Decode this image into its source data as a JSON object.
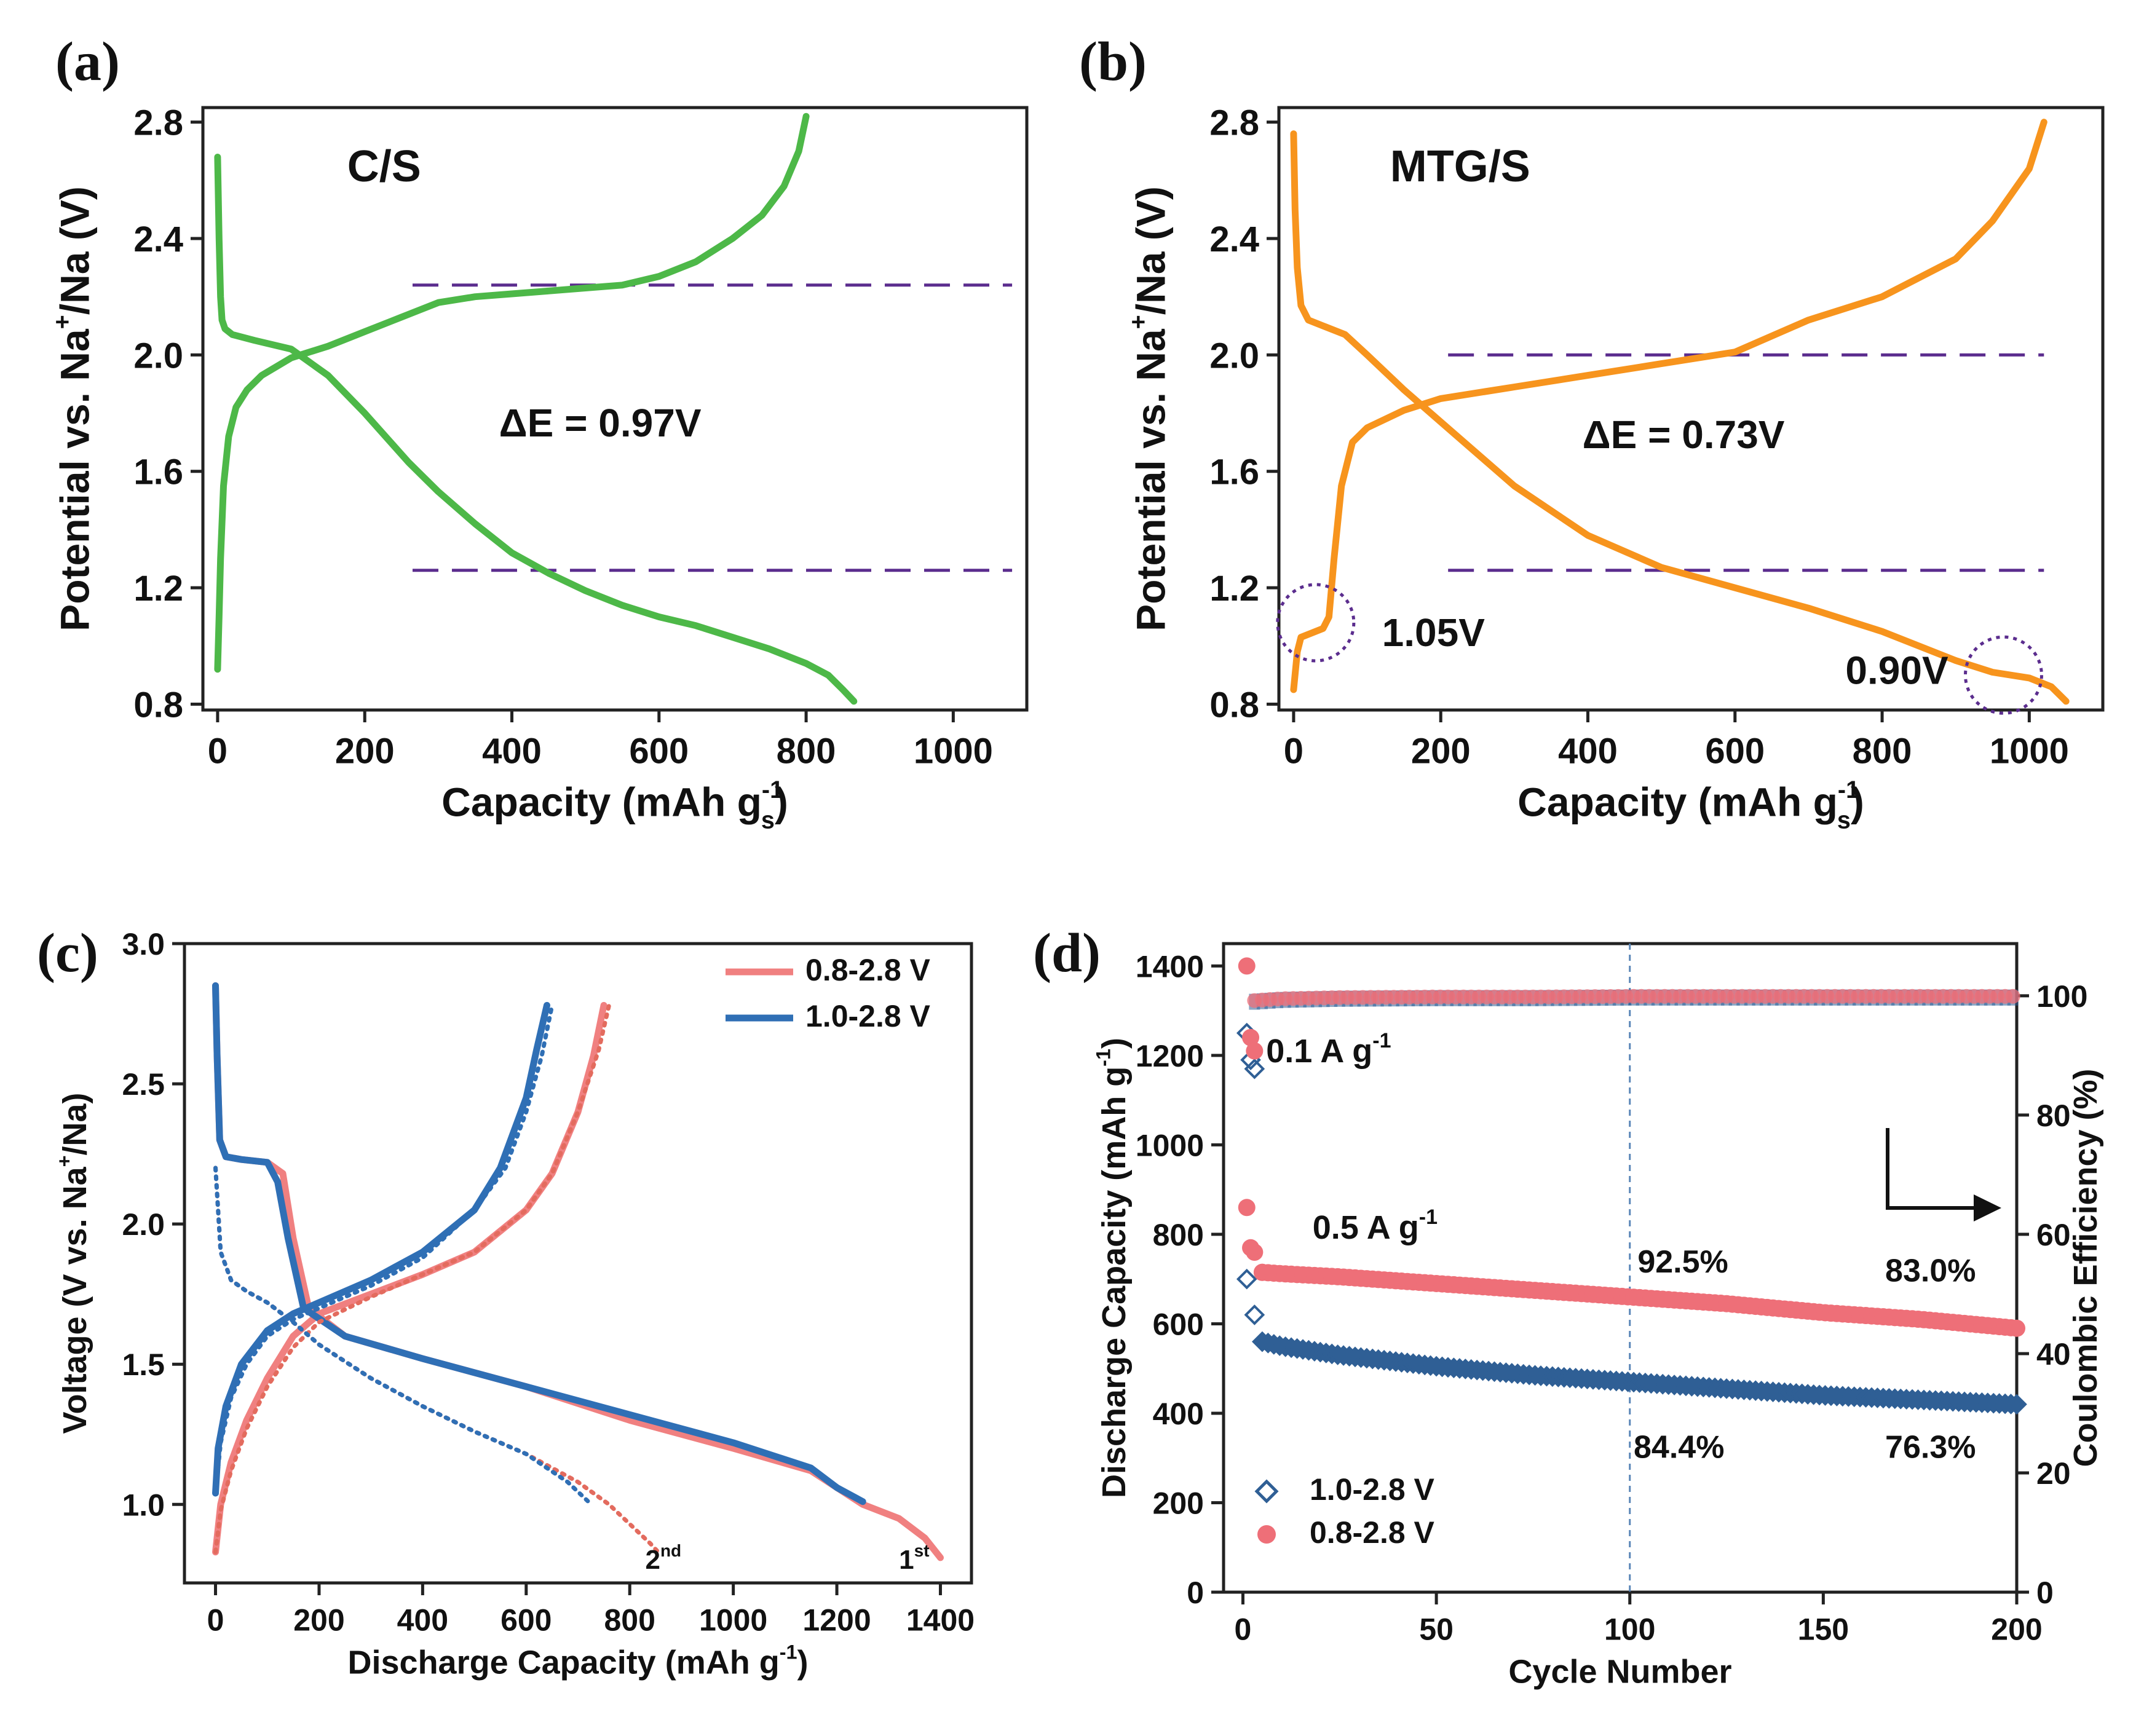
{
  "chart_data": [
    {
      "id": "a",
      "type": "line",
      "panel_label": "(a)",
      "title": "C/S",
      "xlabel": "Capacity (mAh g",
      "xlabel_sub": "s",
      "xlabel_sup": "-1",
      "ylabel": "Potential vs. Na",
      "ylabel_sup": "+",
      "ylabel_tail": "/Na (V)",
      "xlim": [
        -20,
        1100
      ],
      "ylim": [
        0.78,
        2.85
      ],
      "xticks": [
        0,
        200,
        400,
        600,
        800,
        1000
      ],
      "yticks": [
        0.8,
        1.2,
        1.6,
        2.0,
        2.4,
        2.8
      ],
      "ytick_labels": [
        "0.8",
        "1.2",
        "1.6",
        "2.0",
        "2.4",
        "2.8"
      ],
      "annotation": "ΔE = 0.97V",
      "annotation_at": [
        520,
        1.72
      ],
      "hlines": [
        {
          "y": 2.24,
          "x0": 265,
          "x1": 1080
        },
        {
          "y": 1.26,
          "x0": 265,
          "x1": 1080
        }
      ],
      "series": [
        {
          "name": "discharge",
          "color": "#4db848",
          "x": [
            0,
            2,
            4,
            6,
            10,
            20,
            50,
            100,
            150,
            200,
            260,
            300,
            350,
            400,
            450,
            500,
            550,
            600,
            650,
            700,
            750,
            800,
            830,
            850,
            865
          ],
          "y": [
            2.68,
            2.4,
            2.2,
            2.12,
            2.09,
            2.07,
            2.05,
            2.02,
            1.93,
            1.8,
            1.63,
            1.53,
            1.42,
            1.32,
            1.25,
            1.19,
            1.14,
            1.1,
            1.07,
            1.03,
            0.99,
            0.94,
            0.9,
            0.85,
            0.81
          ]
        },
        {
          "name": "charge",
          "color": "#4db848",
          "x": [
            0,
            2,
            4,
            8,
            15,
            25,
            40,
            60,
            100,
            150,
            200,
            250,
            300,
            350,
            400,
            450,
            500,
            550,
            600,
            650,
            700,
            740,
            770,
            790,
            800
          ],
          "y": [
            0.92,
            1.1,
            1.3,
            1.55,
            1.72,
            1.82,
            1.88,
            1.93,
            1.99,
            2.03,
            2.08,
            2.13,
            2.18,
            2.2,
            2.21,
            2.22,
            2.23,
            2.24,
            2.27,
            2.32,
            2.4,
            2.48,
            2.58,
            2.7,
            2.82
          ]
        }
      ]
    },
    {
      "id": "b",
      "type": "line",
      "panel_label": "(b)",
      "title": "MTG/S",
      "xlabel": "Capacity (mAh g",
      "xlabel_sub": "s",
      "xlabel_sup": "-1",
      "ylabel": "Potential vs. Na",
      "ylabel_sup": "+",
      "ylabel_tail": "/Na (V)",
      "xlim": [
        -20,
        1100
      ],
      "ylim": [
        0.78,
        2.85
      ],
      "xticks": [
        0,
        200,
        400,
        600,
        800,
        1000
      ],
      "yticks": [
        0.8,
        1.2,
        1.6,
        2.0,
        2.4,
        2.8
      ],
      "ytick_labels": [
        "0.8",
        "1.2",
        "1.6",
        "2.0",
        "2.4",
        "2.8"
      ],
      "annotation": "ΔE = 0.73V",
      "annotation_at": [
        530,
        1.68
      ],
      "annotation2": "1.05V",
      "annotation2_at": [
        190,
        1.0
      ],
      "annotation3": "0.90V",
      "annotation3_at": [
        820,
        0.87
      ],
      "circles": [
        {
          "x": 30,
          "y": 1.08
        },
        {
          "x": 965,
          "y": 0.9
        }
      ],
      "hlines": [
        {
          "y": 2.0,
          "x0": 210,
          "x1": 1020
        },
        {
          "y": 1.26,
          "x0": 210,
          "x1": 1020
        }
      ],
      "series": [
        {
          "name": "discharge",
          "color": "#f7941d",
          "x": [
            0,
            2,
            5,
            10,
            20,
            40,
            70,
            100,
            150,
            200,
            300,
            400,
            500,
            600,
            700,
            800,
            900,
            950,
            1000,
            1030,
            1050
          ],
          "y": [
            2.76,
            2.5,
            2.3,
            2.17,
            2.12,
            2.1,
            2.07,
            2.0,
            1.88,
            1.77,
            1.55,
            1.38,
            1.27,
            1.2,
            1.13,
            1.05,
            0.95,
            0.91,
            0.89,
            0.86,
            0.81
          ]
        },
        {
          "name": "charge",
          "color": "#f7941d",
          "x": [
            0,
            5,
            10,
            20,
            40,
            48,
            55,
            65,
            80,
            100,
            150,
            200,
            300,
            400,
            500,
            600,
            700,
            800,
            900,
            950,
            1000,
            1020
          ],
          "y": [
            0.85,
            0.98,
            1.03,
            1.04,
            1.06,
            1.1,
            1.3,
            1.55,
            1.7,
            1.75,
            1.81,
            1.85,
            1.89,
            1.93,
            1.97,
            2.01,
            2.12,
            2.2,
            2.33,
            2.46,
            2.64,
            2.8
          ]
        }
      ]
    },
    {
      "id": "c",
      "type": "line",
      "panel_label": "(c)",
      "xlabel": "Discharge Capacity (mAh g",
      "xlabel_sup": "-1",
      "xlabel_tail": ")",
      "ylabel": "Voltage (V vs. Na",
      "ylabel_sup": "+",
      "ylabel_tail": "/Na)",
      "xlim": [
        -60,
        1460
      ],
      "ylim": [
        0.72,
        3.0
      ],
      "xticks": [
        0,
        200,
        400,
        600,
        800,
        1000,
        1200,
        1400
      ],
      "yticks": [
        1.0,
        1.5,
        2.0,
        2.5,
        3.0
      ],
      "ytick_labels": [
        "1.0",
        "1.5",
        "2.0",
        "2.5",
        "3.0"
      ],
      "legend": [
        {
          "label": "0.8-2.8 V",
          "color": "#f08080"
        },
        {
          "label": "1.0-2.8 V",
          "color": "#2f6fb5"
        }
      ],
      "cycle_labels": [
        {
          "text": "2",
          "sup": "nd",
          "x": 830,
          "y": 0.77
        },
        {
          "text": "1",
          "sup": "st",
          "x": 1320,
          "y": 0.77
        }
      ],
      "series": [
        {
          "name": "0.8-2.8 V 1st discharge",
          "color": "#f08080",
          "dotted": false,
          "x": [
            0,
            3,
            8,
            20,
            50,
            100,
            130,
            150,
            180,
            250,
            400,
            600,
            800,
            1000,
            1150,
            1250,
            1320,
            1370,
            1400
          ],
          "y": [
            2.85,
            2.6,
            2.3,
            2.24,
            2.23,
            2.22,
            2.18,
            1.95,
            1.7,
            1.6,
            1.52,
            1.42,
            1.3,
            1.2,
            1.12,
            1.0,
            0.95,
            0.88,
            0.81
          ]
        },
        {
          "name": "0.8-2.8 V 1st charge",
          "color": "#f08080",
          "dotted": false,
          "x": [
            0,
            10,
            30,
            60,
            100,
            150,
            200,
            300,
            400,
            500,
            600,
            650,
            700,
            730,
            750
          ],
          "y": [
            0.83,
            1.0,
            1.15,
            1.3,
            1.45,
            1.6,
            1.68,
            1.75,
            1.82,
            1.9,
            2.05,
            2.18,
            2.4,
            2.6,
            2.78
          ]
        },
        {
          "name": "1.0-2.8 V 1st discharge",
          "color": "#2f6fb5",
          "dotted": false,
          "x": [
            0,
            3,
            8,
            20,
            50,
            100,
            120,
            140,
            170,
            250,
            400,
            600,
            800,
            1000,
            1150,
            1200,
            1250
          ],
          "y": [
            2.85,
            2.6,
            2.3,
            2.24,
            2.23,
            2.22,
            2.15,
            1.95,
            1.7,
            1.6,
            1.52,
            1.42,
            1.32,
            1.22,
            1.13,
            1.06,
            1.01
          ]
        },
        {
          "name": "1.0-2.8 V 1st charge",
          "color": "#2f6fb5",
          "dotted": false,
          "x": [
            0,
            5,
            20,
            50,
            100,
            150,
            200,
            300,
            400,
            500,
            550,
            600,
            620,
            640
          ],
          "y": [
            1.04,
            1.2,
            1.35,
            1.5,
            1.62,
            1.68,
            1.72,
            1.8,
            1.9,
            2.05,
            2.2,
            2.45,
            2.62,
            2.78
          ]
        },
        {
          "name": "0.8-2.8 V 2nd discharge",
          "color": "#e36b5e",
          "dotted": true,
          "x": [
            0,
            10,
            30,
            60,
            100,
            150,
            200,
            300,
            400,
            500,
            600,
            700,
            760,
            800,
            840,
            860
          ],
          "y": [
            2.2,
            1.9,
            1.8,
            1.76,
            1.72,
            1.65,
            1.57,
            1.45,
            1.35,
            1.26,
            1.18,
            1.08,
            1.0,
            0.93,
            0.86,
            0.82
          ]
        },
        {
          "name": "0.8-2.8 V 2nd charge",
          "color": "#e36b5e",
          "dotted": true,
          "x": [
            0,
            10,
            30,
            60,
            100,
            150,
            200,
            300,
            400,
            500,
            600,
            650,
            700,
            740,
            760
          ],
          "y": [
            0.83,
            0.98,
            1.12,
            1.27,
            1.42,
            1.56,
            1.65,
            1.74,
            1.82,
            1.9,
            2.05,
            2.18,
            2.4,
            2.62,
            2.78
          ]
        },
        {
          "name": "1.0-2.8 V 2nd discharge",
          "color": "#2f6fb5",
          "dotted": true,
          "x": [
            0,
            10,
            30,
            60,
            100,
            150,
            200,
            300,
            400,
            500,
            600,
            680,
            720
          ],
          "y": [
            2.2,
            1.9,
            1.8,
            1.76,
            1.72,
            1.65,
            1.57,
            1.45,
            1.35,
            1.26,
            1.18,
            1.08,
            1.01
          ]
        },
        {
          "name": "1.0-2.8 V 2nd charge",
          "color": "#2f6fb5",
          "dotted": true,
          "x": [
            0,
            10,
            30,
            60,
            100,
            150,
            200,
            300,
            400,
            500,
            560,
            600,
            630,
            650
          ],
          "y": [
            1.04,
            1.22,
            1.38,
            1.5,
            1.6,
            1.66,
            1.7,
            1.78,
            1.88,
            2.05,
            2.2,
            2.4,
            2.6,
            2.78
          ]
        }
      ]
    },
    {
      "id": "d",
      "type": "scatter",
      "panel_label": "(d)",
      "xlabel": "Cycle Number",
      "ylabel": "Discharge Capacity (mAh g",
      "ylabel_sup": "-1",
      "ylabel_tail": ")",
      "y2label": "Coulombic Efficiency  (%)",
      "xlim": [
        -5,
        200
      ],
      "ylim": [
        0,
        1450
      ],
      "y2lim": [
        0,
        108.75
      ],
      "xticks": [
        0,
        50,
        100,
        150,
        200
      ],
      "yticks": [
        0,
        200,
        400,
        600,
        800,
        1000,
        1200,
        1400
      ],
      "y2ticks": [
        0,
        20,
        40,
        60,
        80,
        100
      ],
      "vline_x": 100,
      "legend": [
        {
          "label": "1.0-2.8 V",
          "marker": "diamond",
          "color": "#2f5f95"
        },
        {
          "label": "0.8-2.8 V",
          "marker": "circle",
          "color": "#ee6f78"
        }
      ],
      "rate_labels": [
        {
          "text": "0.1 A g",
          "sup": "-1",
          "x": 6,
          "y": 1185
        },
        {
          "text": "0.5 A g",
          "sup": "-1",
          "x": 18,
          "y": 790
        }
      ],
      "percent_labels": [
        {
          "text": "92.5%",
          "x": 102,
          "y": 715
        },
        {
          "text": "83.0%",
          "x": 166,
          "y": 695
        },
        {
          "text": "84.4%",
          "x": 101,
          "y": 300
        },
        {
          "text": "76.3%",
          "x": 166,
          "y": 300
        }
      ],
      "series": [
        {
          "name": "1.0-2.8 V capacity 0.1 A g-1",
          "color": "#2f5f95",
          "marker": "diamond",
          "x": [
            1,
            2,
            3
          ],
          "y": [
            1250,
            1190,
            1170
          ]
        },
        {
          "name": "0.8-2.8 V capacity 0.1 A g-1",
          "color": "#ee6f78",
          "marker": "circle",
          "x": [
            1,
            2,
            3
          ],
          "y": [
            1400,
            1240,
            1210
          ]
        },
        {
          "name": "1.0-2.8 V capacity 0.5 A g-1",
          "color": "#2f5f95",
          "marker": "diamond",
          "x": [
            1,
            3,
            5,
            10,
            25,
            50,
            75,
            100,
            125,
            150,
            175,
            200
          ],
          "y": [
            700,
            620,
            560,
            550,
            530,
            505,
            485,
            470,
            455,
            440,
            430,
            420
          ]
        },
        {
          "name": "0.8-2.8 V capacity 0.5 A g-1",
          "color": "#ee6f78",
          "marker": "circle",
          "x": [
            1,
            2,
            3,
            5,
            10,
            25,
            50,
            75,
            100,
            125,
            150,
            175,
            200
          ],
          "y": [
            860,
            770,
            760,
            715,
            712,
            705,
            690,
            675,
            660,
            645,
            625,
            610,
            590
          ]
        },
        {
          "name": "Coulombic efficiency",
          "color": "#ee6f78",
          "marker": "circle",
          "axis": "y2",
          "x": [
            3,
            10,
            25,
            50,
            75,
            100,
            125,
            150,
            175,
            200
          ],
          "y": [
            99,
            99.3,
            99.5,
            99.6,
            99.6,
            99.7,
            99.7,
            99.7,
            99.7,
            99.7
          ]
        }
      ]
    }
  ]
}
